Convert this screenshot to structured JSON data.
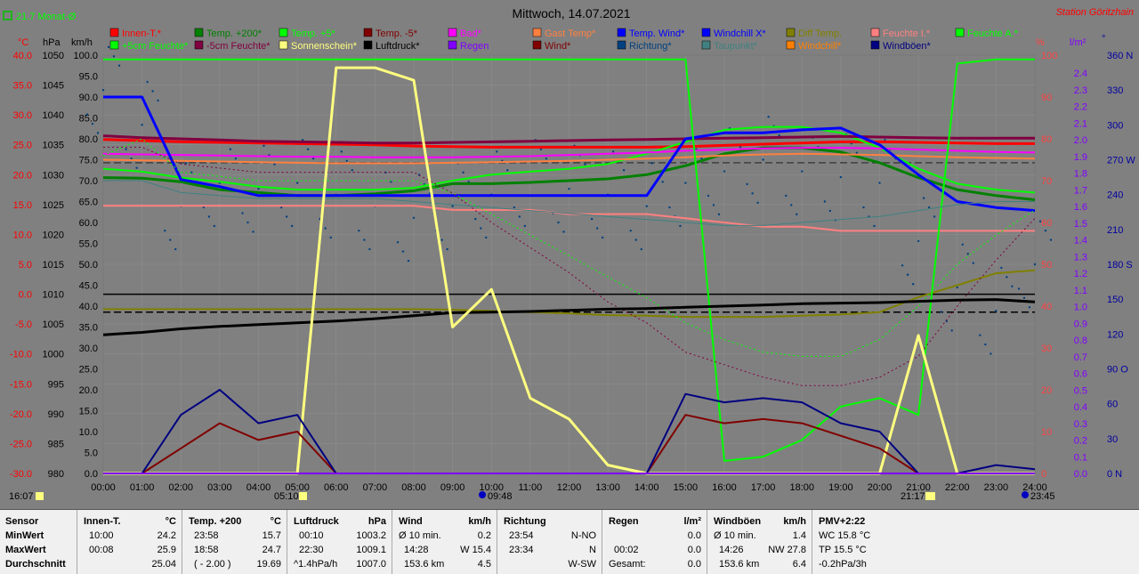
{
  "header": {
    "title": "Mittwoch, 14.07.2021",
    "station": "Station Göritzhain",
    "month_avg": "21.7 Monat-Ø",
    "time_left": "16:07",
    "sunrise": "05:10",
    "sunset": "21:17",
    "moonrise": "09:48",
    "moonset": "23:45"
  },
  "axes": {
    "units_left": [
      "°C",
      "hPa",
      "km/h"
    ],
    "units_right": [
      "%",
      "l/m²",
      "°"
    ],
    "temp_ticks": [
      "40.0",
      "35.0",
      "30.0",
      "25.0",
      "20.0",
      "15.0",
      "10.0",
      "5.0",
      "0.0",
      "-5.0",
      "-10.0",
      "-15.0",
      "-20.0",
      "-25.0",
      "-30.0"
    ],
    "press_ticks": [
      "1050",
      "1045",
      "1040",
      "1035",
      "1030",
      "1025",
      "1020",
      "1015",
      "1010",
      "1005",
      "1000",
      "995",
      "990",
      "985",
      "980"
    ],
    "wind_ticks": [
      "100.0",
      "95.0",
      "90.0",
      "85.0",
      "80.0",
      "75.0",
      "70.0",
      "65.0",
      "60.0",
      "55.0",
      "50.0",
      "45.0",
      "40.0",
      "35.0",
      "30.0",
      "25.0",
      "20.0",
      "15.0",
      "10.0",
      "5.0",
      "0.0"
    ],
    "hum_ticks": [
      "100",
      "90",
      "80",
      "70",
      "60",
      "50",
      "40",
      "30",
      "20",
      "10",
      "0"
    ],
    "rain_ticks": [
      "2.4",
      "2.3",
      "2.2",
      "2.1",
      "2.0",
      "1.9",
      "1.8",
      "1.7",
      "1.6",
      "1.5",
      "1.4",
      "1.3",
      "1.2",
      "1.1",
      "1.0",
      "0.9",
      "0.8",
      "0.7",
      "0.6",
      "0.5",
      "0.4",
      "0.3",
      "0.2",
      "0.1",
      "0.0"
    ],
    "dir_ticks": [
      "360 N",
      "330",
      "300",
      "270 W",
      "240",
      "210",
      "180 S",
      "150",
      "120",
      "90 O",
      "60",
      "30",
      "0 N"
    ],
    "time_ticks": [
      "00:00",
      "01:00",
      "02:00",
      "03:00",
      "04:00",
      "05:00",
      "06:00",
      "07:00",
      "08:00",
      "09:00",
      "10:00",
      "11:00",
      "12:00",
      "13:00",
      "14:00",
      "15:00",
      "16:00",
      "17:00",
      "18:00",
      "19:00",
      "20:00",
      "21:00",
      "22:00",
      "23:00",
      "24:00"
    ]
  },
  "legend": [
    {
      "label": "Innen-T.*",
      "color": "#ff0000"
    },
    {
      "label": "Temp. +200*",
      "color": "#008000"
    },
    {
      "label": "Temp. +5*",
      "color": "#00ff00"
    },
    {
      "label": "Temp. -5*",
      "color": "#800000"
    },
    {
      "label": "Bad*",
      "color": "#ff00ff"
    },
    {
      "label": "Gast Temp*",
      "color": "#ff8040"
    },
    {
      "label": "Temp. Wind*",
      "color": "#0000ff"
    },
    {
      "label": "Windchill X*",
      "color": "#0000ff"
    },
    {
      "label": "Diff Temp.",
      "color": "#808000"
    },
    {
      "label": "Feuchte I.*",
      "color": "#ff8080"
    },
    {
      "label": "Feuchte A.*",
      "color": "#00ff00"
    },
    {
      "label": "+5cm Feuchte*",
      "color": "#00ff00"
    },
    {
      "label": "-5cm Feuchte*",
      "color": "#800040"
    },
    {
      "label": "Sonnenschein*",
      "color": "#ffff80"
    },
    {
      "label": "Luftdruck*",
      "color": "#000000"
    },
    {
      "label": "Regen",
      "color": "#8000ff"
    },
    {
      "label": "Wind*",
      "color": "#800000"
    },
    {
      "label": "Richtung*",
      "color": "#004080"
    },
    {
      "label": "Taupunkt*",
      "color": "#408080"
    },
    {
      "label": "Windchill*",
      "color": "#ff8000"
    },
    {
      "label": "Windböen*",
      "color": "#000080"
    }
  ],
  "chart_data": {
    "type": "line",
    "x": [
      "00:00",
      "01:00",
      "02:00",
      "03:00",
      "04:00",
      "05:00",
      "06:00",
      "07:00",
      "08:00",
      "09:00",
      "10:00",
      "11:00",
      "12:00",
      "13:00",
      "14:00",
      "15:00",
      "16:00",
      "17:00",
      "18:00",
      "19:00",
      "20:00",
      "21:00",
      "22:00",
      "23:00",
      "24:00"
    ],
    "series": [
      {
        "name": "Innen-T.*",
        "axis": "temp",
        "color": "#ff0000",
        "width": 3,
        "values": [
          25.9,
          25.7,
          25.5,
          25.4,
          25.3,
          25.2,
          25.1,
          25.0,
          24.8,
          24.7,
          24.6,
          24.6,
          24.6,
          24.6,
          24.6,
          24.7,
          24.9,
          25.1,
          25.3,
          25.5,
          25.5,
          25.4,
          25.3,
          25.2,
          25.2
        ]
      },
      {
        "name": "Temp. +200*",
        "axis": "temp",
        "color": "#008000",
        "width": 3,
        "values": [
          19.5,
          19.4,
          18.8,
          17.5,
          17.0,
          16.5,
          16.5,
          16.8,
          17.3,
          18.5,
          18.5,
          18.7,
          19.0,
          19.3,
          20.0,
          21.5,
          23.5,
          24.5,
          24.5,
          23.8,
          22.0,
          19.5,
          17.5,
          16.5,
          15.8
        ]
      },
      {
        "name": "Temp. +5*",
        "axis": "temp",
        "color": "#00ff00",
        "width": 2,
        "values": [
          21.0,
          20.5,
          19.5,
          18.8,
          18.0,
          17.5,
          17.5,
          17.5,
          17.8,
          19.0,
          20.0,
          20.5,
          21.0,
          21.8,
          23.5,
          25.5,
          27.5,
          28.0,
          28.0,
          27.0,
          24.5,
          21.0,
          18.5,
          17.5,
          17.0
        ]
      },
      {
        "name": "Temp. -5*",
        "axis": "temp",
        "color": "#800040",
        "width": 3,
        "values": [
          26.5,
          26.2,
          26.0,
          25.8,
          25.6,
          25.5,
          25.4,
          25.3,
          25.3,
          25.4,
          25.5,
          25.6,
          25.7,
          25.8,
          25.9,
          26.0,
          26.1,
          26.2,
          26.3,
          26.4,
          26.3,
          26.2,
          26.1,
          26.1,
          26.1
        ]
      },
      {
        "name": "Bad*",
        "axis": "temp",
        "color": "#ff00ff",
        "width": 2,
        "values": [
          23.5,
          23.4,
          23.3,
          23.2,
          23.1,
          23.0,
          23.0,
          22.9,
          22.9,
          22.9,
          23.0,
          23.1,
          23.3,
          23.5,
          23.7,
          24.0,
          24.2,
          24.4,
          24.5,
          24.5,
          24.4,
          24.2,
          24.0,
          23.8,
          23.7
        ]
      },
      {
        "name": "Gast Temp*",
        "axis": "temp",
        "color": "#ff8040",
        "width": 2,
        "values": [
          22.5,
          22.4,
          22.3,
          22.2,
          22.1,
          22.0,
          21.9,
          21.9,
          21.9,
          22.0,
          22.1,
          22.2,
          22.3,
          22.5,
          22.7,
          22.9,
          23.2,
          23.4,
          23.5,
          23.4,
          23.3,
          23.1,
          22.9,
          22.8,
          22.7
        ]
      },
      {
        "name": "Temp. Wind*",
        "axis": "temp",
        "color": "#0000ff",
        "width": 3,
        "values": [
          33.0,
          33.0,
          19.2,
          18.0,
          16.5,
          16.5,
          16.5,
          16.5,
          16.5,
          16.5,
          16.5,
          16.5,
          16.5,
          16.5,
          16.5,
          26.0,
          27.0,
          27.0,
          27.5,
          27.8,
          25.0,
          20.0,
          15.5,
          14.5,
          14.0
        ]
      },
      {
        "name": "Diff Temp.",
        "axis": "temp",
        "color": "#808000",
        "width": 2,
        "values": [
          -2.5,
          -2.5,
          -2.5,
          -2.5,
          -2.5,
          -2.5,
          -2.5,
          -2.5,
          -2.5,
          -2.6,
          -2.8,
          -3.0,
          -3.2,
          -3.5,
          -3.6,
          -3.8,
          -3.8,
          -3.8,
          -3.6,
          -3.4,
          -3.0,
          -0.5,
          1.5,
          3.5,
          4.0
        ]
      },
      {
        "name": "Feuchte I.*",
        "axis": "hum",
        "color": "#ff8080",
        "width": 2,
        "values": [
          64,
          64,
          64,
          64,
          64,
          64,
          64,
          64,
          64,
          63,
          63,
          63,
          62,
          62,
          62,
          61,
          60,
          59,
          59,
          58,
          58,
          58,
          58,
          58,
          58
        ]
      },
      {
        "name": "Feuchte A.*",
        "axis": "hum",
        "color": "#00ff00",
        "width": 2,
        "values": [
          99,
          99,
          99,
          99,
          99,
          99,
          99,
          99,
          99,
          99,
          99,
          99,
          99,
          99,
          99,
          99,
          3,
          4,
          8,
          16,
          18,
          14,
          98,
          99,
          99
        ]
      },
      {
        "name": "+5cm Feuchte*",
        "axis": "hum",
        "color": "#00ff00",
        "width": 1,
        "dashed": true,
        "values": [
          76,
          80,
          72,
          71,
          70,
          70,
          70,
          70,
          70,
          67,
          62,
          57,
          52,
          47,
          42,
          36,
          32,
          29,
          28,
          28,
          32,
          40,
          50,
          57,
          63
        ]
      },
      {
        "name": "-5cm Feuchte*",
        "axis": "hum",
        "color": "#800040",
        "width": 1,
        "dashed": true,
        "values": [
          78,
          78,
          74,
          73,
          72,
          72,
          72,
          72,
          72,
          67,
          60,
          54,
          48,
          41,
          36,
          29,
          26,
          23,
          21,
          21,
          23,
          28,
          40,
          51,
          61
        ]
      },
      {
        "name": "Taupunkt*",
        "axis": "temp",
        "color": "#408080",
        "width": 1,
        "values": [
          19.0,
          19.0,
          17.0,
          16.5,
          16.0,
          16.0,
          16.0,
          16.0,
          15.5,
          15.0,
          14.5,
          14.0,
          13.5,
          13.0,
          12.5,
          12.0,
          11.5,
          11.5,
          12.0,
          12.5,
          13.0,
          14.0,
          15.0,
          15.5,
          15.5
        ]
      },
      {
        "name": "Luftdruck*",
        "axis": "press",
        "color": "#000000",
        "width": 3,
        "values": [
          1003.2,
          1003.6,
          1004.2,
          1004.6,
          1004.9,
          1005.2,
          1005.5,
          1005.9,
          1006.4,
          1006.9,
          1007.0,
          1007.1,
          1007.3,
          1007.5,
          1007.6,
          1007.8,
          1008.0,
          1008.2,
          1008.4,
          1008.5,
          1008.6,
          1008.8,
          1009.0,
          1009.1,
          1008.7
        ]
      },
      {
        "name": "Sonnenschein*",
        "axis": "wind",
        "color": "#ffff80",
        "width": 3,
        "values": [
          0,
          0,
          0,
          0,
          0,
          0,
          97,
          97,
          94,
          35,
          44,
          18,
          13,
          2,
          0,
          0,
          0,
          0,
          0,
          0,
          0,
          33,
          0,
          0,
          0
        ]
      },
      {
        "name": "Wind*",
        "axis": "wind",
        "color": "#800000",
        "width": 2,
        "values": [
          0,
          0,
          6,
          12,
          8,
          10,
          0,
          0,
          0,
          0,
          0,
          0,
          0,
          0,
          0,
          14,
          12,
          13,
          12,
          9,
          6,
          0,
          0,
          0,
          0
        ]
      },
      {
        "name": "Windböen*",
        "axis": "wind",
        "color": "#000080",
        "width": 2,
        "values": [
          0,
          0,
          14,
          20,
          12,
          14,
          0,
          0,
          0,
          0,
          0,
          0,
          0,
          0,
          0,
          19,
          17,
          18,
          17,
          12,
          10,
          0,
          0,
          2,
          1
        ]
      },
      {
        "name": "Regen",
        "axis": "rain",
        "color": "#8000ff",
        "width": 2,
        "values": [
          0,
          0,
          0,
          0,
          0,
          0,
          0,
          0,
          0,
          0,
          0,
          0,
          0,
          0,
          0,
          0,
          0,
          0,
          0,
          0,
          0,
          0,
          0,
          0,
          0
        ]
      }
    ],
    "reference_lines": [
      {
        "axis": "temp",
        "value": 0,
        "color": "#000000",
        "dashed": false
      },
      {
        "axis": "temp",
        "value": -3,
        "color": "#000000",
        "dashed": true
      },
      {
        "axis": "temp",
        "value": 22,
        "color": "#404040",
        "dashed": true
      }
    ],
    "direction_scatter": {
      "color": "#004080",
      "values": [
        330,
        300,
        230,
        250,
        245,
        250,
        240,
        230,
        220,
        230,
        240,
        250,
        245,
        240,
        230,
        250,
        260,
        270,
        260,
        255,
        250,
        200,
        160,
        140,
        180
      ]
    },
    "ranges": {
      "temp": [
        -30,
        40
      ],
      "press": [
        980,
        1050
      ],
      "wind": [
        0,
        100
      ],
      "hum": [
        0,
        100
      ],
      "rain": [
        0,
        2.5
      ],
      "dir": [
        0,
        360
      ]
    }
  },
  "stats": {
    "sensor": {
      "header": "Sensor",
      "rows": [
        "MinWert",
        "MaxWert",
        "Durchschnitt"
      ]
    },
    "innen": {
      "header": "Innen-T.",
      "unit": "°C",
      "rows": [
        [
          "10:00",
          "24.2"
        ],
        [
          "00:08",
          "25.9"
        ],
        [
          "",
          "25.04"
        ]
      ]
    },
    "temp200": {
      "header": "Temp. +200",
      "unit": "°C",
      "rows": [
        [
          "23:58",
          "15.7"
        ],
        [
          "18:58",
          "24.7"
        ],
        [
          "( - 2.00 )",
          "19.69"
        ]
      ]
    },
    "luftdruck": {
      "header": "Luftdruck",
      "unit": "hPa",
      "rows": [
        [
          "00:10",
          "1003.2"
        ],
        [
          "22:30",
          "1009.1"
        ],
        [
          "^1.4hPa/h",
          "1007.0"
        ]
      ]
    },
    "wind": {
      "header": "Wind",
      "unit": "km/h",
      "rows": [
        [
          "Ø 10 min.",
          "0.2"
        ],
        [
          "14:28",
          "W 15.4"
        ],
        [
          "153.6 km",
          "4.5"
        ]
      ]
    },
    "richtung": {
      "header": "Richtung",
      "rows": [
        [
          "23:54",
          "N-NO"
        ],
        [
          "23:34",
          "N"
        ],
        [
          "",
          "W-SW"
        ]
      ]
    },
    "regen": {
      "header": "Regen",
      "unit": "l/m²",
      "rows": [
        [
          "",
          "0.0"
        ],
        [
          "00:02",
          "0.0"
        ],
        [
          "Gesamt:",
          "0.0"
        ]
      ]
    },
    "boeen": {
      "header": "Windböen",
      "unit": "km/h",
      "rows": [
        [
          "Ø 10 min.",
          "1.4"
        ],
        [
          "14:26",
          "NW 27.8"
        ],
        [
          "153.6 km",
          "6.4"
        ]
      ]
    },
    "pmv": {
      "header": "PMV+2:22",
      "rows": [
        "WC 15.8 °C",
        "TP 15.5 °C",
        "-0.2hPa/3h"
      ]
    }
  }
}
